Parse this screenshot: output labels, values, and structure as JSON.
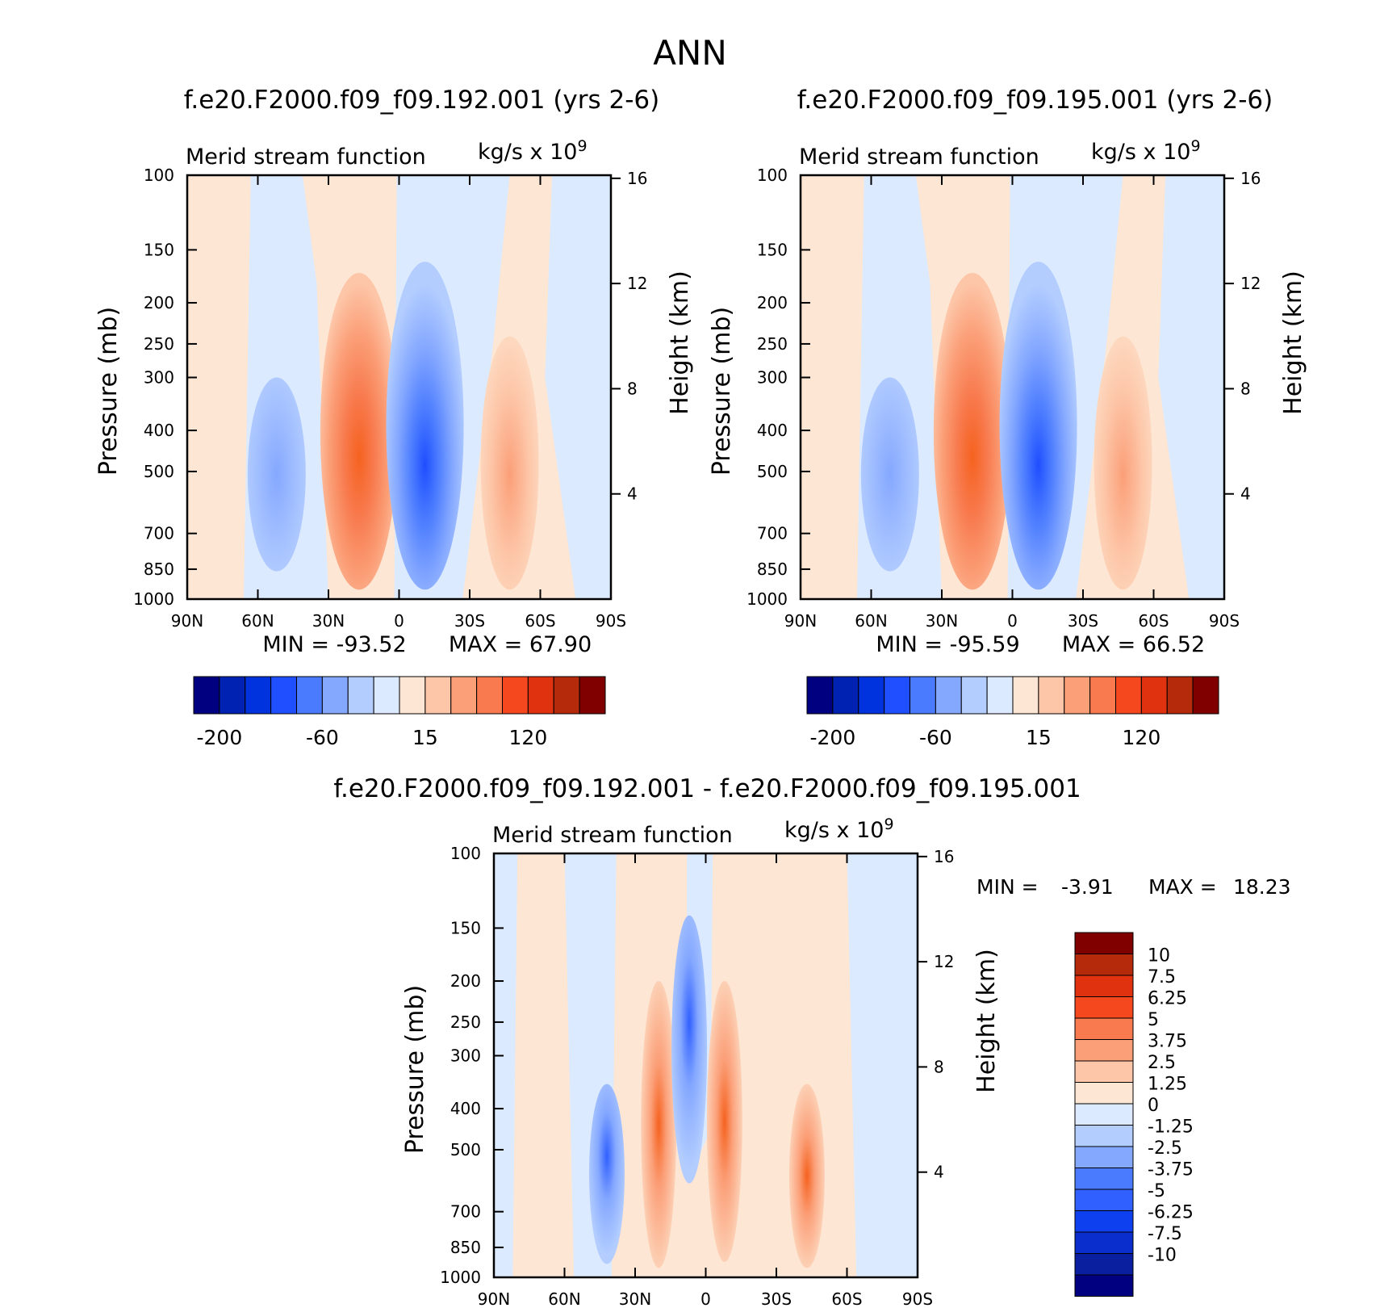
{
  "figure": {
    "title": "ANN"
  },
  "units_label": "kg/s x 10",
  "units_exponent": "9",
  "var_label": "Merid stream function",
  "y_label_left": "Pressure (mb)",
  "y_label_right": "Height (km)",
  "colors": {
    "full_levels": [
      "#000080",
      "#0022b3",
      "#0033dd",
      "#1f4fff",
      "#4a7bff",
      "#85a8ff",
      "#b3cdff",
      "#dbeaff",
      "#fde6d3",
      "#fdc6a8",
      "#fb9f78",
      "#f87a4e",
      "#f5481f",
      "#e0320f",
      "#b52a0a",
      "#800000"
    ],
    "diff_levels": [
      "#000080",
      "#0a1fa0",
      "#0a2ecd",
      "#0f40f0",
      "#3060ff",
      "#4a7bff",
      "#85a8ff",
      "#b3cdff",
      "#dbeaff",
      "#fde6d3",
      "#fdc6a8",
      "#fb9f78",
      "#f87a4e",
      "#f5481f",
      "#e0320f",
      "#b52a0a",
      "#800000"
    ]
  },
  "chart_data": [
    {
      "type": "heatmap",
      "title": "f.e20.F2000.f09_f09.192.001 (yrs 2-6)",
      "xlabel": "",
      "ylabel": "Pressure (mb)",
      "ylabel_right": "Height (km)",
      "x_ticks": [
        "90N",
        "60N",
        "30N",
        "0",
        "30S",
        "60S",
        "90S"
      ],
      "x_range": [
        90,
        -90
      ],
      "y_ticks": [
        100,
        150,
        200,
        250,
        300,
        400,
        500,
        700,
        850,
        1000
      ],
      "y_range": [
        100,
        1000
      ],
      "y_scale": "log",
      "y_right_ticks": [
        16,
        12,
        8,
        4
      ],
      "min_label": "MIN = -93.52",
      "max_label": "MAX = 67.90",
      "min": -93.52,
      "max": 67.9,
      "colorbar_labels": [
        "-200",
        "-60",
        "15",
        "120"
      ],
      "cells": [
        {
          "lat": 52,
          "p_top": 300,
          "p_bot": 860,
          "v": -15
        },
        {
          "lat": 17,
          "p_top": 170,
          "p_bot": 950,
          "v": 40
        },
        {
          "lat": -11,
          "p_top": 160,
          "p_bot": 950,
          "v": -60
        },
        {
          "lat": -47,
          "p_top": 240,
          "p_bot": 950,
          "v": 25
        }
      ]
    },
    {
      "type": "heatmap",
      "title": "f.e20.F2000.f09_f09.195.001 (yrs 2-6)",
      "xlabel": "",
      "ylabel": "Pressure (mb)",
      "ylabel_right": "Height (km)",
      "x_ticks": [
        "90N",
        "60N",
        "30N",
        "0",
        "30S",
        "60S",
        "90S"
      ],
      "x_range": [
        90,
        -90
      ],
      "y_ticks": [
        100,
        150,
        200,
        250,
        300,
        400,
        500,
        700,
        850,
        1000
      ],
      "y_range": [
        100,
        1000
      ],
      "y_scale": "log",
      "y_right_ticks": [
        16,
        12,
        8,
        4
      ],
      "min_label": "MIN = -95.59",
      "max_label": "MAX = 66.52",
      "min": -95.59,
      "max": 66.52,
      "colorbar_labels": [
        "-200",
        "-60",
        "15",
        "120"
      ],
      "cells": [
        {
          "lat": 52,
          "p_top": 300,
          "p_bot": 860,
          "v": -15
        },
        {
          "lat": 17,
          "p_top": 170,
          "p_bot": 950,
          "v": 40
        },
        {
          "lat": -11,
          "p_top": 160,
          "p_bot": 950,
          "v": -60
        },
        {
          "lat": -47,
          "p_top": 240,
          "p_bot": 950,
          "v": 25
        }
      ]
    },
    {
      "type": "heatmap",
      "title": "f.e20.F2000.f09_f09.192.001 - f.e20.F2000.f09_f09.195.001",
      "xlabel": "",
      "ylabel": "Pressure (mb)",
      "ylabel_right": "Height (km)",
      "x_ticks": [
        "90N",
        "60N",
        "30N",
        "0",
        "30S",
        "60S",
        "90S"
      ],
      "x_range": [
        90,
        -90
      ],
      "y_ticks": [
        100,
        150,
        200,
        250,
        300,
        400,
        500,
        700,
        850,
        1000
      ],
      "y_range": [
        100,
        1000
      ],
      "y_scale": "log",
      "y_right_ticks": [
        16,
        12,
        8,
        4
      ],
      "min_label": "MIN =",
      "min_value": "-3.91",
      "max_label": "MAX =",
      "max_value": "18.23",
      "min": -3.91,
      "max": 18.23,
      "colorbar_labels": [
        "10",
        "7.5",
        "6.25",
        "5",
        "3.75",
        "2.5",
        "1.25",
        "0",
        "-1.25",
        "-2.5",
        "-3.75",
        "-5",
        "-6.25",
        "-7.5",
        "-10"
      ],
      "cells": [
        {
          "lat": 42,
          "p_top": 350,
          "p_bot": 930,
          "v": -2
        },
        {
          "lat": 20,
          "p_top": 200,
          "p_bot": 950,
          "v": 2
        },
        {
          "lat": 7,
          "p_top": 140,
          "p_bot": 600,
          "v": -2
        },
        {
          "lat": -8,
          "p_top": 200,
          "p_bot": 920,
          "v": 2
        },
        {
          "lat": -43,
          "p_top": 350,
          "p_bot": 950,
          "v": 1
        }
      ]
    }
  ]
}
